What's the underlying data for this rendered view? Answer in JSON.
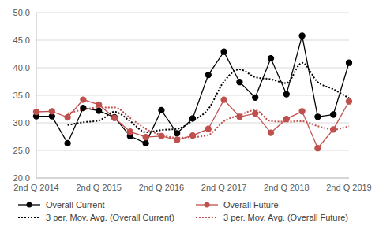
{
  "chart_data": {
    "type": "line",
    "categories": [
      "2nd Q 2014",
      null,
      null,
      null,
      "2nd Q 2015",
      null,
      null,
      null,
      "2nd Q 2016",
      null,
      null,
      null,
      "2nd Q 2017",
      null,
      null,
      null,
      "2nd Q 2018",
      null,
      null,
      null,
      "2nd Q 2019"
    ],
    "series": [
      {
        "name": "Overall Current",
        "color": "#000000",
        "marker": "circle",
        "line_style": "solid",
        "values": [
          31.2,
          31.2,
          26.3,
          32.7,
          32.2,
          31.0,
          27.6,
          26.3,
          32.3,
          28.1,
          30.8,
          38.7,
          42.9,
          37.4,
          34.6,
          41.7,
          35.2,
          45.8,
          31.1,
          31.5,
          40.9
        ]
      },
      {
        "name": "Overall Future",
        "color": "#c0504d",
        "marker": "circle",
        "line_style": "solid",
        "values": [
          32.0,
          32.1,
          31.0,
          34.2,
          33.3,
          30.9,
          28.4,
          27.4,
          27.6,
          26.9,
          27.7,
          28.9,
          34.2,
          31.1,
          31.7,
          28.2,
          30.7,
          32.1,
          25.4,
          28.8,
          33.9
        ]
      },
      {
        "name": "3 per. Mov. Avg. (Overall Current)",
        "color": "#000000",
        "marker": "none",
        "line_style": "dotted",
        "values": [
          null,
          null,
          29.6,
          30.1,
          30.4,
          32.0,
          30.3,
          28.3,
          28.7,
          28.9,
          30.4,
          32.5,
          37.5,
          39.7,
          38.3,
          37.9,
          37.2,
          40.9,
          37.4,
          36.1,
          34.5
        ]
      },
      {
        "name": "3 per. Mov. Avg. (Overall Future)",
        "color": "#c0504d",
        "marker": "none",
        "line_style": "dotted",
        "values": [
          null,
          null,
          31.7,
          32.4,
          32.8,
          32.8,
          30.9,
          28.9,
          27.8,
          27.3,
          27.4,
          27.8,
          30.3,
          31.4,
          32.3,
          30.3,
          30.2,
          30.3,
          29.4,
          28.8,
          29.4
        ]
      }
    ],
    "ylim": [
      20,
      50
    ],
    "yticks": [
      {
        "value": 20,
        "label": "20.0"
      },
      {
        "value": 25,
        "label": "25.0"
      },
      {
        "value": 30,
        "label": "30.0"
      },
      {
        "value": 35,
        "label": "35.0"
      },
      {
        "value": 40,
        "label": "40.0"
      },
      {
        "value": 45,
        "label": "45.0"
      },
      {
        "value": 50,
        "label": "50.0"
      }
    ],
    "grid": true,
    "legend": "bottom"
  }
}
